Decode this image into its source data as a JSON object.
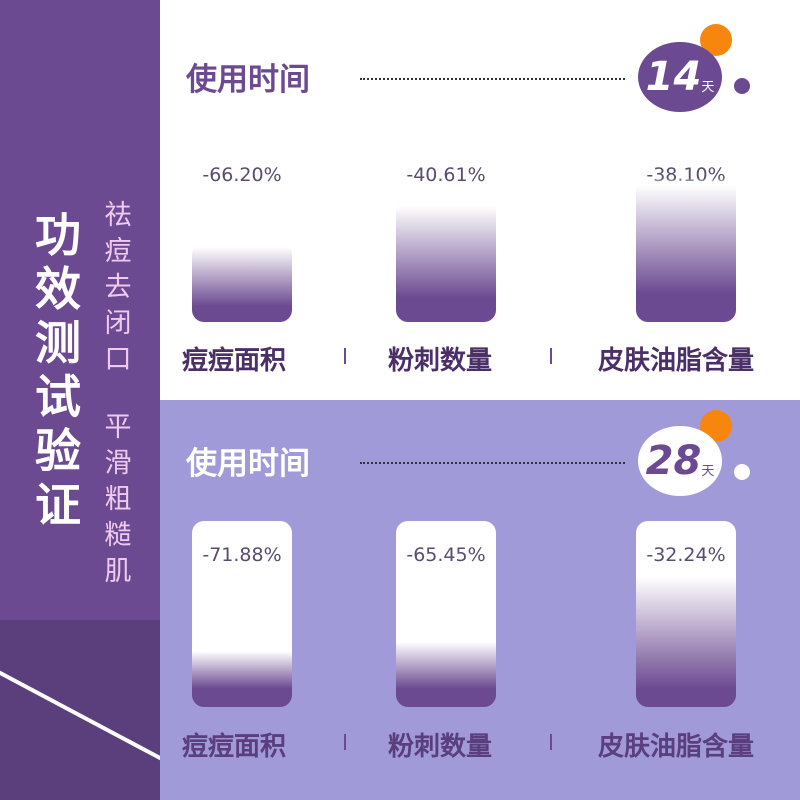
{
  "sidebar": {
    "title": "功效测试验证",
    "subtitle_col1": "祛痘去闭口",
    "subtitle_col2": "平滑粗糙肌"
  },
  "colors": {
    "primary_purple": "#6c4a91",
    "light_purple": "#a19ad9",
    "accent_orange": "#f7860e",
    "subtitle_pink": "#f0c9ee"
  },
  "panels": [
    {
      "heading": "使用时间",
      "days": "14",
      "unit": "天",
      "metrics": [
        {
          "label": "痘痘面积",
          "value": "-66.20%",
          "fill": 0.55
        },
        {
          "label": "粉刺数量",
          "value": "-40.61%",
          "fill": 0.85
        },
        {
          "label": "皮肤油脂含量",
          "value": "-38.10%",
          "fill": 1.0
        }
      ]
    },
    {
      "heading": "使用时间",
      "days": "28",
      "unit": "天",
      "metrics": [
        {
          "label": "痘痘面积",
          "value": "-71.88%",
          "fill": 0.3
        },
        {
          "label": "粉刺数量",
          "value": "-65.45%",
          "fill": 0.35
        },
        {
          "label": "皮肤油脂含量",
          "value": "-32.24%",
          "fill": 0.7
        }
      ]
    }
  ]
}
